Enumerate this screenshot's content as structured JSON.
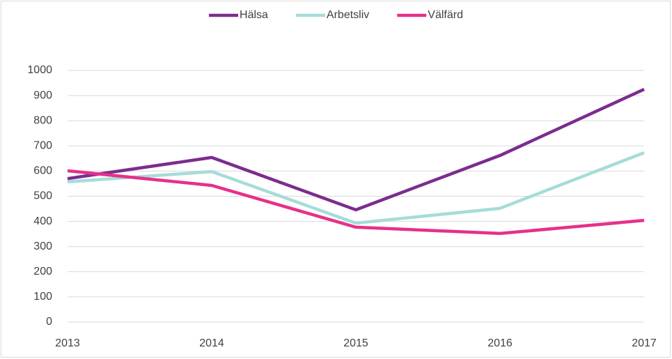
{
  "chart_data": {
    "type": "line",
    "x": [
      2013,
      2014,
      2015,
      2016,
      2017
    ],
    "xlim": [
      2013,
      2017
    ],
    "xticks": [
      2013,
      2014,
      2015,
      2016,
      2017
    ],
    "ylim": [
      0,
      1000
    ],
    "yticks": [
      0,
      100,
      200,
      300,
      400,
      500,
      600,
      700,
      800,
      900,
      1000
    ],
    "grid": true,
    "legend": "top",
    "series": [
      {
        "name": "Hälsa",
        "color": "#7b2d8e",
        "values": [
          570,
          654,
          446,
          662,
          925
        ]
      },
      {
        "name": "Arbetsliv",
        "color": "#a6dcd8",
        "values": [
          557,
          598,
          393,
          452,
          673
        ]
      },
      {
        "name": "Välfärd",
        "color": "#e5318a",
        "values": [
          601,
          543,
          377,
          352,
          404
        ]
      }
    ]
  }
}
